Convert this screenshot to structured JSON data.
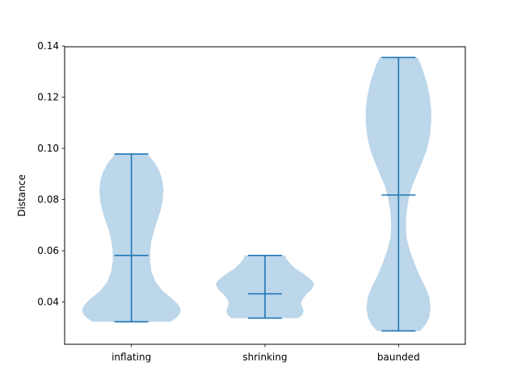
{
  "chart_data": {
    "type": "violin",
    "title": "",
    "xlabel": "",
    "ylabel": "Distance",
    "ylim": [
      0.0235,
      0.1397
    ],
    "yticks": [
      0.04,
      0.06,
      0.08,
      0.1,
      0.12,
      0.14
    ],
    "ytick_labels": [
      "0.04",
      "0.06",
      "0.08",
      "0.10",
      "0.12",
      "0.14"
    ],
    "categories": [
      "inflating",
      "shrinking",
      "baunded"
    ],
    "grid": false,
    "colors": {
      "body": "#bcd6ea",
      "lines": "#1f77b4"
    },
    "series": [
      {
        "min": 0.0323,
        "max": 0.0978,
        "median": 0.0582,
        "density": [
          {
            "y": 0.0323,
            "w": 0.58
          },
          {
            "y": 0.0336,
            "w": 0.66
          },
          {
            "y": 0.0352,
            "w": 0.72
          },
          {
            "y": 0.037,
            "w": 0.74
          },
          {
            "y": 0.039,
            "w": 0.7
          },
          {
            "y": 0.0415,
            "w": 0.6
          },
          {
            "y": 0.0445,
            "w": 0.46
          },
          {
            "y": 0.048,
            "w": 0.36
          },
          {
            "y": 0.052,
            "w": 0.3
          },
          {
            "y": 0.056,
            "w": 0.28
          },
          {
            "y": 0.06,
            "w": 0.28
          },
          {
            "y": 0.064,
            "w": 0.3
          },
          {
            "y": 0.068,
            "w": 0.34
          },
          {
            "y": 0.072,
            "w": 0.39
          },
          {
            "y": 0.076,
            "w": 0.44
          },
          {
            "y": 0.08,
            "w": 0.47
          },
          {
            "y": 0.084,
            "w": 0.48
          },
          {
            "y": 0.088,
            "w": 0.46
          },
          {
            "y": 0.091,
            "w": 0.42
          },
          {
            "y": 0.094,
            "w": 0.36
          },
          {
            "y": 0.096,
            "w": 0.3
          },
          {
            "y": 0.0978,
            "w": 0.24
          }
        ]
      },
      {
        "min": 0.0337,
        "max": 0.0582,
        "median": 0.0432,
        "density": [
          {
            "y": 0.0337,
            "w": 0.5
          },
          {
            "y": 0.035,
            "w": 0.56
          },
          {
            "y": 0.0365,
            "w": 0.58
          },
          {
            "y": 0.038,
            "w": 0.56
          },
          {
            "y": 0.0395,
            "w": 0.54
          },
          {
            "y": 0.041,
            "w": 0.56
          },
          {
            "y": 0.043,
            "w": 0.62
          },
          {
            "y": 0.045,
            "w": 0.7
          },
          {
            "y": 0.047,
            "w": 0.74
          },
          {
            "y": 0.049,
            "w": 0.68
          },
          {
            "y": 0.051,
            "w": 0.58
          },
          {
            "y": 0.053,
            "w": 0.46
          },
          {
            "y": 0.055,
            "w": 0.38
          },
          {
            "y": 0.0565,
            "w": 0.33
          },
          {
            "y": 0.0582,
            "w": 0.3
          }
        ]
      },
      {
        "min": 0.0287,
        "max": 0.1355,
        "median": 0.0818,
        "density": [
          {
            "y": 0.0287,
            "w": 0.32
          },
          {
            "y": 0.031,
            "w": 0.4
          },
          {
            "y": 0.034,
            "w": 0.46
          },
          {
            "y": 0.038,
            "w": 0.48
          },
          {
            "y": 0.042,
            "w": 0.46
          },
          {
            "y": 0.046,
            "w": 0.4
          },
          {
            "y": 0.05,
            "w": 0.32
          },
          {
            "y": 0.055,
            "w": 0.24
          },
          {
            "y": 0.06,
            "w": 0.17
          },
          {
            "y": 0.065,
            "w": 0.12
          },
          {
            "y": 0.07,
            "w": 0.11
          },
          {
            "y": 0.075,
            "w": 0.12
          },
          {
            "y": 0.08,
            "w": 0.15
          },
          {
            "y": 0.085,
            "w": 0.2
          },
          {
            "y": 0.09,
            "w": 0.28
          },
          {
            "y": 0.095,
            "w": 0.36
          },
          {
            "y": 0.1,
            "w": 0.43
          },
          {
            "y": 0.105,
            "w": 0.47
          },
          {
            "y": 0.11,
            "w": 0.49
          },
          {
            "y": 0.115,
            "w": 0.49
          },
          {
            "y": 0.12,
            "w": 0.47
          },
          {
            "y": 0.125,
            "w": 0.43
          },
          {
            "y": 0.13,
            "w": 0.37
          },
          {
            "y": 0.133,
            "w": 0.33
          },
          {
            "y": 0.1355,
            "w": 0.28
          }
        ]
      }
    ]
  }
}
